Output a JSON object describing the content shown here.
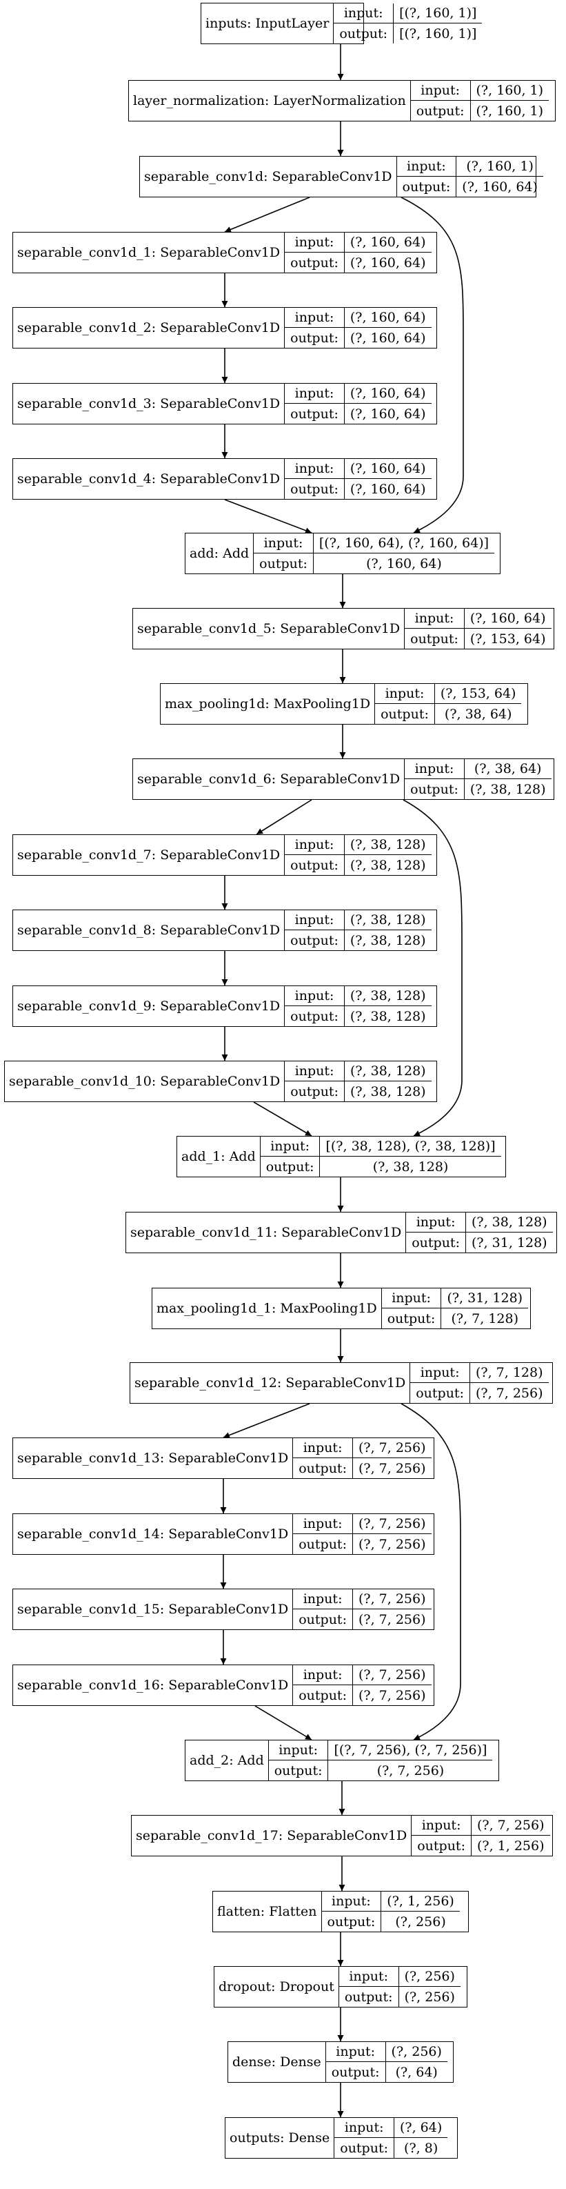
{
  "nodes": [
    {
      "id": "inputs",
      "label": "inputs: InputLayer",
      "input": "[(?, 160, 1)]",
      "output": "[(?, 160, 1)]"
    },
    {
      "id": "layer_normalization",
      "label": "layer_normalization: LayerNormalization",
      "input": "(?, 160, 1)",
      "output": "(?, 160, 1)"
    },
    {
      "id": "separable_conv1d",
      "label": "separable_conv1d: SeparableConv1D",
      "input": "(?, 160, 1)",
      "output": "(?, 160, 64)"
    },
    {
      "id": "separable_conv1d_1",
      "label": "separable_conv1d_1: SeparableConv1D",
      "input": "(?, 160, 64)",
      "output": "(?, 160, 64)"
    },
    {
      "id": "separable_conv1d_2",
      "label": "separable_conv1d_2: SeparableConv1D",
      "input": "(?, 160, 64)",
      "output": "(?, 160, 64)"
    },
    {
      "id": "separable_conv1d_3",
      "label": "separable_conv1d_3: SeparableConv1D",
      "input": "(?, 160, 64)",
      "output": "(?, 160, 64)"
    },
    {
      "id": "separable_conv1d_4",
      "label": "separable_conv1d_4: SeparableConv1D",
      "input": "(?, 160, 64)",
      "output": "(?, 160, 64)"
    },
    {
      "id": "add",
      "label": "add: Add",
      "input": "[(?, 160, 64), (?, 160, 64)]",
      "output": "(?, 160, 64)"
    },
    {
      "id": "separable_conv1d_5",
      "label": "separable_conv1d_5: SeparableConv1D",
      "input": "(?, 160, 64)",
      "output": "(?, 153, 64)"
    },
    {
      "id": "max_pooling1d",
      "label": "max_pooling1d: MaxPooling1D",
      "input": "(?, 153, 64)",
      "output": "(?, 38, 64)"
    },
    {
      "id": "separable_conv1d_6",
      "label": "separable_conv1d_6: SeparableConv1D",
      "input": "(?, 38, 64)",
      "output": "(?, 38, 128)"
    },
    {
      "id": "separable_conv1d_7",
      "label": "separable_conv1d_7: SeparableConv1D",
      "input": "(?, 38, 128)",
      "output": "(?, 38, 128)"
    },
    {
      "id": "separable_conv1d_8",
      "label": "separable_conv1d_8: SeparableConv1D",
      "input": "(?, 38, 128)",
      "output": "(?, 38, 128)"
    },
    {
      "id": "separable_conv1d_9",
      "label": "separable_conv1d_9: SeparableConv1D",
      "input": "(?, 38, 128)",
      "output": "(?, 38, 128)"
    },
    {
      "id": "separable_conv1d_10",
      "label": "separable_conv1d_10: SeparableConv1D",
      "input": "(?, 38, 128)",
      "output": "(?, 38, 128)"
    },
    {
      "id": "add_1",
      "label": "add_1: Add",
      "input": "[(?, 38, 128), (?, 38, 128)]",
      "output": "(?, 38, 128)"
    },
    {
      "id": "separable_conv1d_11",
      "label": "separable_conv1d_11: SeparableConv1D",
      "input": "(?, 38, 128)",
      "output": "(?, 31, 128)"
    },
    {
      "id": "max_pooling1d_1",
      "label": "max_pooling1d_1: MaxPooling1D",
      "input": "(?, 31, 128)",
      "output": "(?, 7, 128)"
    },
    {
      "id": "separable_conv1d_12",
      "label": "separable_conv1d_12: SeparableConv1D",
      "input": "(?, 7, 128)",
      "output": "(?, 7, 256)"
    },
    {
      "id": "separable_conv1d_13",
      "label": "separable_conv1d_13: SeparableConv1D",
      "input": "(?, 7, 256)",
      "output": "(?, 7, 256)"
    },
    {
      "id": "separable_conv1d_14",
      "label": "separable_conv1d_14: SeparableConv1D",
      "input": "(?, 7, 256)",
      "output": "(?, 7, 256)"
    },
    {
      "id": "separable_conv1d_15",
      "label": "separable_conv1d_15: SeparableConv1D",
      "input": "(?, 7, 256)",
      "output": "(?, 7, 256)"
    },
    {
      "id": "separable_conv1d_16",
      "label": "separable_conv1d_16: SeparableConv1D",
      "input": "(?, 7, 256)",
      "output": "(?, 7, 256)"
    },
    {
      "id": "add_2",
      "label": "add_2: Add",
      "input": "[(?, 7, 256), (?, 7, 256)]",
      "output": "(?, 7, 256)"
    },
    {
      "id": "separable_conv1d_17",
      "label": "separable_conv1d_17: SeparableConv1D",
      "input": "(?, 7, 256)",
      "output": "(?, 1, 256)"
    },
    {
      "id": "flatten",
      "label": "flatten: Flatten",
      "input": "(?, 1, 256)",
      "output": "(?, 256)"
    },
    {
      "id": "dropout",
      "label": "dropout: Dropout",
      "input": "(?, 256)",
      "output": "(?, 256)"
    },
    {
      "id": "dense",
      "label": "dense: Dense",
      "input": "(?, 256)",
      "output": "(?, 64)"
    },
    {
      "id": "outputs",
      "label": "outputs: Dense",
      "input": "(?, 64)",
      "output": "(?, 8)"
    }
  ],
  "io_labels": {
    "input": "input:",
    "output": "output:"
  },
  "edges": [
    [
      "inputs",
      "layer_normalization"
    ],
    [
      "layer_normalization",
      "separable_conv1d"
    ],
    [
      "separable_conv1d",
      "separable_conv1d_1"
    ],
    [
      "separable_conv1d",
      "add"
    ],
    [
      "separable_conv1d_1",
      "separable_conv1d_2"
    ],
    [
      "separable_conv1d_2",
      "separable_conv1d_3"
    ],
    [
      "separable_conv1d_3",
      "separable_conv1d_4"
    ],
    [
      "separable_conv1d_4",
      "add"
    ],
    [
      "add",
      "separable_conv1d_5"
    ],
    [
      "separable_conv1d_5",
      "max_pooling1d"
    ],
    [
      "max_pooling1d",
      "separable_conv1d_6"
    ],
    [
      "separable_conv1d_6",
      "separable_conv1d_7"
    ],
    [
      "separable_conv1d_6",
      "add_1"
    ],
    [
      "separable_conv1d_7",
      "separable_conv1d_8"
    ],
    [
      "separable_conv1d_8",
      "separable_conv1d_9"
    ],
    [
      "separable_conv1d_9",
      "separable_conv1d_10"
    ],
    [
      "separable_conv1d_10",
      "add_1"
    ],
    [
      "add_1",
      "separable_conv1d_11"
    ],
    [
      "separable_conv1d_11",
      "max_pooling1d_1"
    ],
    [
      "max_pooling1d_1",
      "separable_conv1d_12"
    ],
    [
      "separable_conv1d_12",
      "separable_conv1d_13"
    ],
    [
      "separable_conv1d_12",
      "add_2"
    ],
    [
      "separable_conv1d_13",
      "separable_conv1d_14"
    ],
    [
      "separable_conv1d_14",
      "separable_conv1d_15"
    ],
    [
      "separable_conv1d_15",
      "separable_conv1d_16"
    ],
    [
      "separable_conv1d_16",
      "add_2"
    ],
    [
      "add_2",
      "separable_conv1d_17"
    ],
    [
      "separable_conv1d_17",
      "flatten"
    ],
    [
      "flatten",
      "dropout"
    ],
    [
      "dropout",
      "dense"
    ],
    [
      "dense",
      "outputs"
    ]
  ]
}
